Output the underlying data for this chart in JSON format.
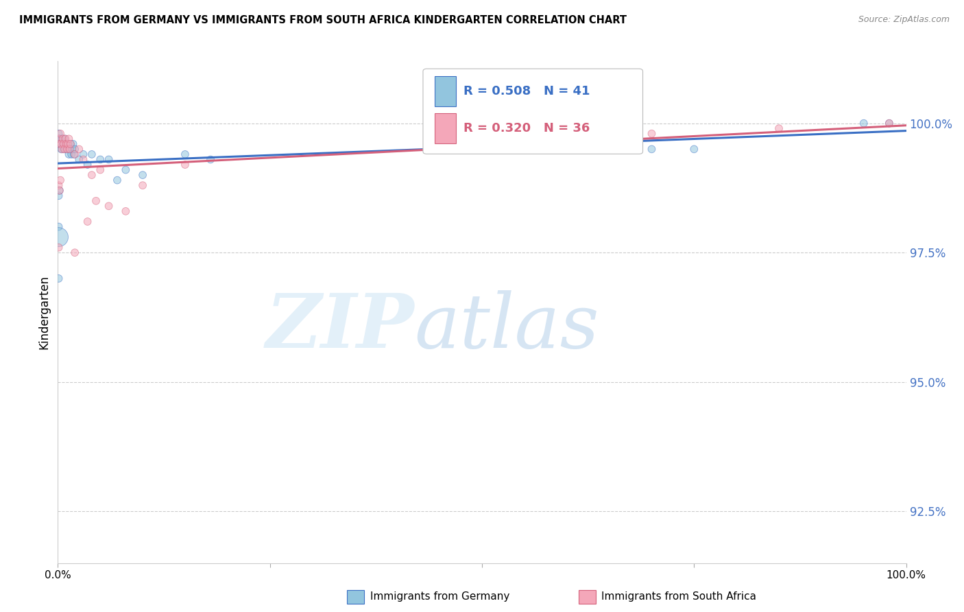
{
  "title": "IMMIGRANTS FROM GERMANY VS IMMIGRANTS FROM SOUTH AFRICA KINDERGARTEN CORRELATION CHART",
  "source": "Source: ZipAtlas.com",
  "ylabel": "Kindergarten",
  "y_ticks": [
    92.5,
    95.0,
    97.5,
    100.0
  ],
  "y_tick_labels": [
    "92.5%",
    "95.0%",
    "97.5%",
    "100.0%"
  ],
  "xlim": [
    0.0,
    1.0
  ],
  "ylim": [
    91.5,
    101.2
  ],
  "legend_germany_r": "R = 0.508",
  "legend_germany_n": "N = 41",
  "legend_sa_r": "R = 0.320",
  "legend_sa_n": "N = 36",
  "color_germany": "#92c5de",
  "color_sa": "#f4a7b9",
  "line_color_germany": "#3a6fc4",
  "line_color_sa": "#d45f7a",
  "germany_points": [
    [
      0.001,
      99.8
    ],
    [
      0.002,
      99.7
    ],
    [
      0.003,
      99.6
    ],
    [
      0.004,
      99.5
    ],
    [
      0.005,
      99.7
    ],
    [
      0.006,
      99.6
    ],
    [
      0.007,
      99.5
    ],
    [
      0.008,
      99.7
    ],
    [
      0.009,
      99.6
    ],
    [
      0.01,
      99.5
    ],
    [
      0.011,
      99.6
    ],
    [
      0.012,
      99.5
    ],
    [
      0.013,
      99.4
    ],
    [
      0.014,
      99.5
    ],
    [
      0.015,
      99.6
    ],
    [
      0.016,
      99.4
    ],
    [
      0.017,
      99.5
    ],
    [
      0.018,
      99.6
    ],
    [
      0.019,
      99.4
    ],
    [
      0.02,
      99.5
    ],
    [
      0.025,
      99.3
    ],
    [
      0.03,
      99.4
    ],
    [
      0.035,
      99.2
    ],
    [
      0.04,
      99.4
    ],
    [
      0.05,
      99.3
    ],
    [
      0.06,
      99.3
    ],
    [
      0.07,
      98.9
    ],
    [
      0.08,
      99.1
    ],
    [
      0.001,
      98.6
    ],
    [
      0.002,
      98.7
    ],
    [
      0.1,
      99.0
    ],
    [
      0.15,
      99.4
    ],
    [
      0.18,
      99.3
    ],
    [
      0.001,
      98.0
    ],
    [
      0.6,
      99.5
    ],
    [
      0.7,
      99.5
    ],
    [
      0.75,
      99.5
    ],
    [
      0.98,
      100.0
    ],
    [
      0.95,
      100.0
    ],
    [
      0.001,
      97.8
    ],
    [
      0.001,
      97.0
    ]
  ],
  "germany_sizes": [
    60,
    60,
    60,
    60,
    60,
    60,
    60,
    60,
    60,
    60,
    60,
    60,
    60,
    60,
    60,
    60,
    60,
    60,
    60,
    60,
    60,
    60,
    60,
    60,
    60,
    60,
    60,
    60,
    60,
    60,
    60,
    60,
    60,
    60,
    60,
    60,
    60,
    60,
    60,
    400,
    60
  ],
  "sa_points": [
    [
      0.001,
      99.7
    ],
    [
      0.002,
      99.6
    ],
    [
      0.003,
      99.8
    ],
    [
      0.004,
      99.6
    ],
    [
      0.005,
      99.5
    ],
    [
      0.006,
      99.7
    ],
    [
      0.007,
      99.6
    ],
    [
      0.008,
      99.5
    ],
    [
      0.009,
      99.7
    ],
    [
      0.01,
      99.6
    ],
    [
      0.011,
      99.5
    ],
    [
      0.012,
      99.6
    ],
    [
      0.013,
      99.7
    ],
    [
      0.014,
      99.5
    ],
    [
      0.015,
      99.6
    ],
    [
      0.02,
      99.4
    ],
    [
      0.025,
      99.5
    ],
    [
      0.03,
      99.3
    ],
    [
      0.001,
      98.8
    ],
    [
      0.002,
      98.7
    ],
    [
      0.003,
      98.9
    ],
    [
      0.04,
      99.0
    ],
    [
      0.05,
      99.1
    ],
    [
      0.035,
      98.1
    ],
    [
      0.06,
      98.4
    ],
    [
      0.001,
      97.6
    ],
    [
      0.1,
      98.8
    ],
    [
      0.15,
      99.2
    ],
    [
      0.02,
      97.5
    ],
    [
      0.55,
      99.6
    ],
    [
      0.65,
      99.7
    ],
    [
      0.7,
      99.8
    ],
    [
      0.85,
      99.9
    ],
    [
      0.98,
      100.0
    ],
    [
      0.045,
      98.5
    ],
    [
      0.08,
      98.3
    ]
  ],
  "sa_sizes": [
    60,
    60,
    60,
    60,
    60,
    60,
    60,
    60,
    60,
    60,
    60,
    60,
    60,
    60,
    60,
    60,
    60,
    60,
    60,
    60,
    60,
    60,
    60,
    60,
    60,
    60,
    60,
    60,
    60,
    60,
    60,
    60,
    60,
    60,
    60,
    60
  ]
}
